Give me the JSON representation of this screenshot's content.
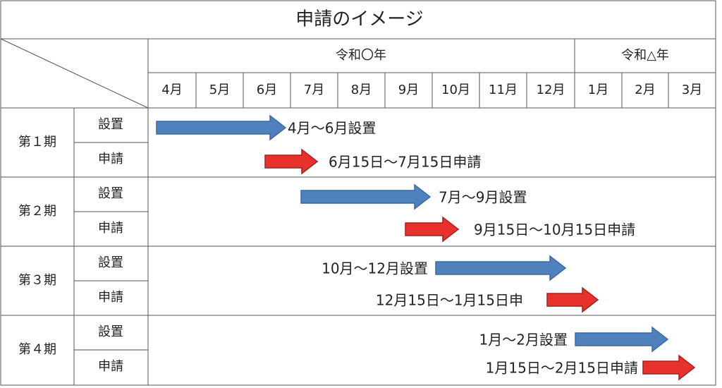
{
  "title": "申請のイメージ",
  "header": {
    "years": [
      "令和〇年",
      "令和△年"
    ],
    "months": [
      "4月",
      "5月",
      "6月",
      "7月",
      "8月",
      "9月",
      "10月",
      "11月",
      "12月",
      "1月",
      "2月",
      "3月"
    ]
  },
  "periods": [
    {
      "label": "第１期",
      "rows": [
        {
          "label": "設置",
          "bar_label": "4月～6月設置"
        },
        {
          "label": "申請",
          "bar_label": "6月15日～7月15日申請"
        }
      ]
    },
    {
      "label": "第２期",
      "rows": [
        {
          "label": "設置",
          "bar_label": "7月～9月設置"
        },
        {
          "label": "申請",
          "bar_label": "9月15日～10月15日申請"
        }
      ]
    },
    {
      "label": "第３期",
      "rows": [
        {
          "label": "設置",
          "bar_label": "10月～12月設置"
        },
        {
          "label": "申請",
          "bar_label": "12月15日～1月15日申"
        }
      ]
    },
    {
      "label": "第４期",
      "rows": [
        {
          "label": "設置",
          "bar_label": "1月～2月設置"
        },
        {
          "label": "申請",
          "bar_label": "1月15日～2月15日申請"
        }
      ]
    }
  ]
}
